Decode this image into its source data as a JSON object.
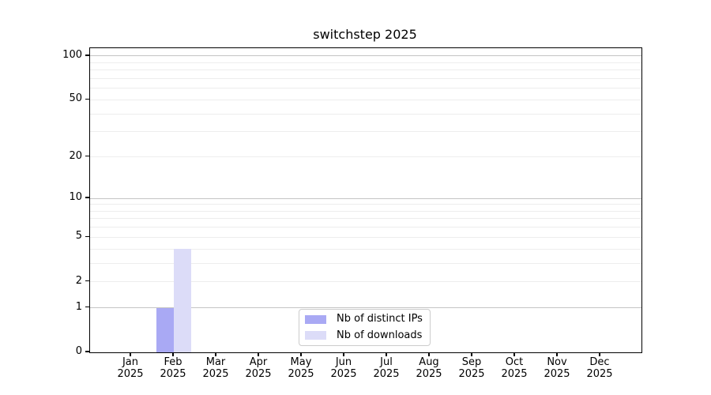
{
  "title": "switchstep 2025",
  "chart_data": {
    "type": "bar",
    "title": "switchstep 2025",
    "x_tick_labels": [
      [
        "Jan",
        "2025"
      ],
      [
        "Feb",
        "2025"
      ],
      [
        "Mar",
        "2025"
      ],
      [
        "Apr",
        "2025"
      ],
      [
        "May",
        "2025"
      ],
      [
        "Jun",
        "2025"
      ],
      [
        "Jul",
        "2025"
      ],
      [
        "Aug",
        "2025"
      ],
      [
        "Sep",
        "2025"
      ],
      [
        "Oct",
        "2025"
      ],
      [
        "Nov",
        "2025"
      ],
      [
        "Dec",
        "2025"
      ]
    ],
    "series": [
      {
        "name": "Nb of distinct IPs",
        "color": "#a9a9f4",
        "values": [
          0,
          1,
          0,
          0,
          0,
          0,
          0,
          0,
          0,
          0,
          0,
          0
        ]
      },
      {
        "name": "Nb of downloads",
        "color": "#dcdcf8",
        "values": [
          0,
          4,
          0,
          0,
          0,
          0,
          0,
          0,
          0,
          0,
          0,
          0
        ]
      }
    ],
    "y_scale": "log10(1+y)",
    "ylim": [
      0,
      113
    ],
    "y_tick_values": [
      0,
      1,
      2,
      5,
      10,
      20,
      50,
      100
    ],
    "y_tick_labels": [
      "0",
      "1",
      "2",
      "5",
      "10",
      "20",
      "50",
      "100"
    ],
    "y_strong_gridlines": [
      1,
      10,
      100
    ],
    "y_light_gridlines": [
      2,
      3,
      4,
      5,
      6,
      7,
      8,
      9,
      20,
      30,
      40,
      50,
      60,
      70,
      80,
      90
    ],
    "grid": true,
    "legend_position": "lower center",
    "legend_items": [
      {
        "label": "Nb of distinct IPs",
        "color": "#a9a9f4"
      },
      {
        "label": "Nb of downloads",
        "color": "#dcdcf8"
      }
    ]
  }
}
